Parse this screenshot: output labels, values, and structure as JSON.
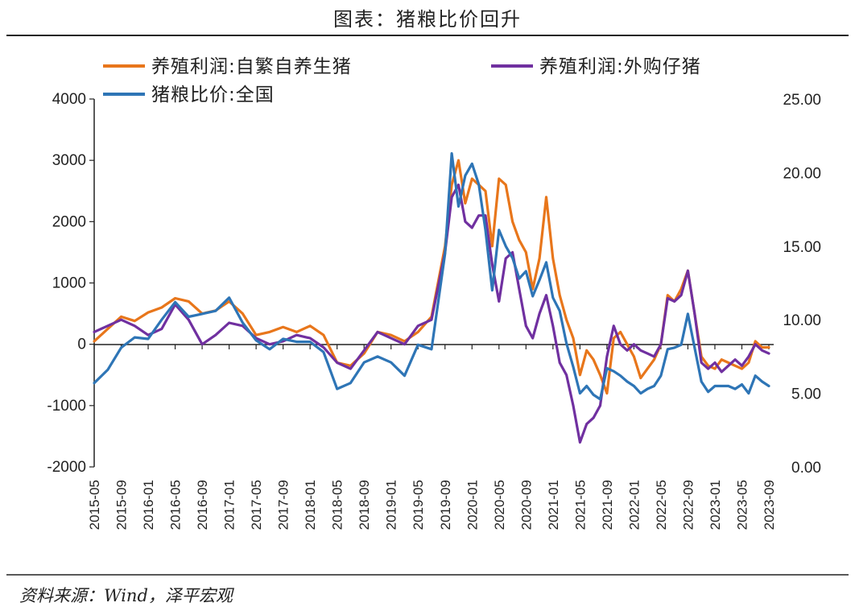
{
  "title": "图表：猪粮比价回升",
  "source": "资料来源：Wind，泽平宏观",
  "colors": {
    "orange": "#E8761B",
    "purple": "#7030A0",
    "blue": "#2E75B6",
    "rule": "#222222"
  },
  "chart_data": {
    "type": "line",
    "legend": [
      "养殖利润:自繁自养生猪",
      "养殖利润:外购仔猪",
      "猪粮比价:全国"
    ],
    "x_ticks": [
      "2015-05",
      "2015-09",
      "2016-01",
      "2016-05",
      "2016-09",
      "2017-01",
      "2017-05",
      "2017-09",
      "2018-01",
      "2018-05",
      "2018-09",
      "2019-01",
      "2019-05",
      "2019-09",
      "2020-01",
      "2020-05",
      "2020-09",
      "2021-01",
      "2021-05",
      "2021-09",
      "2022-01",
      "2022-05",
      "2022-09",
      "2023-01",
      "2023-05",
      "2023-09"
    ],
    "left_axis": {
      "ticks": [
        "4000",
        "3000",
        "2000",
        "1000",
        "0",
        "-1000",
        "-2000"
      ],
      "min": -2000,
      "max": 4000
    },
    "right_axis": {
      "ticks": [
        "25.00",
        "20.00",
        "15.00",
        "10.00",
        "5.00",
        "0.00"
      ],
      "min": 0,
      "max": 25
    },
    "series": [
      {
        "name": "养殖利润:自繁自养生猪",
        "axis": "left",
        "color": "#E8761B",
        "x": [
          "2015-05",
          "2015-07",
          "2015-09",
          "2015-11",
          "2016-01",
          "2016-03",
          "2016-05",
          "2016-07",
          "2016-09",
          "2016-11",
          "2017-01",
          "2017-03",
          "2017-05",
          "2017-07",
          "2017-09",
          "2017-11",
          "2018-01",
          "2018-03",
          "2018-05",
          "2018-07",
          "2018-09",
          "2018-11",
          "2019-01",
          "2019-03",
          "2019-05",
          "2019-07",
          "2019-09",
          "2019-10",
          "2019-11",
          "2019-12",
          "2020-01",
          "2020-02",
          "2020-03",
          "2020-04",
          "2020-05",
          "2020-06",
          "2020-07",
          "2020-08",
          "2020-09",
          "2020-10",
          "2020-11",
          "2020-12",
          "2021-01",
          "2021-02",
          "2021-03",
          "2021-04",
          "2021-05",
          "2021-06",
          "2021-07",
          "2021-08",
          "2021-09",
          "2021-10",
          "2021-11",
          "2021-12",
          "2022-01",
          "2022-02",
          "2022-03",
          "2022-04",
          "2022-05",
          "2022-06",
          "2022-07",
          "2022-08",
          "2022-09",
          "2022-10",
          "2022-11",
          "2022-12",
          "2023-01",
          "2023-02",
          "2023-03",
          "2023-04",
          "2023-05",
          "2023-06",
          "2023-07",
          "2023-08",
          "2023-09"
        ],
        "y": [
          50,
          250,
          450,
          380,
          520,
          600,
          750,
          700,
          500,
          550,
          700,
          500,
          150,
          200,
          280,
          200,
          300,
          150,
          -300,
          -350,
          -150,
          200,
          150,
          50,
          200,
          450,
          1600,
          2600,
          3000,
          2300,
          2700,
          2600,
          2500,
          1600,
          2700,
          2600,
          2000,
          1700,
          1500,
          900,
          1400,
          2400,
          1400,
          800,
          400,
          100,
          -500,
          -100,
          -250,
          -500,
          -800,
          100,
          200,
          0,
          -200,
          -550,
          -400,
          -250,
          0,
          800,
          700,
          900,
          1200,
          500,
          -200,
          -350,
          -400,
          -250,
          -300,
          -350,
          -400,
          -300,
          50,
          -50,
          -50
        ]
      },
      {
        "name": "养殖利润:外购仔猪",
        "axis": "left",
        "color": "#7030A0",
        "x": [
          "2015-05",
          "2015-07",
          "2015-09",
          "2015-11",
          "2016-01",
          "2016-03",
          "2016-05",
          "2016-07",
          "2016-09",
          "2016-11",
          "2017-01",
          "2017-03",
          "2017-05",
          "2017-07",
          "2017-09",
          "2017-11",
          "2018-01",
          "2018-03",
          "2018-05",
          "2018-07",
          "2018-09",
          "2018-11",
          "2019-01",
          "2019-03",
          "2019-05",
          "2019-07",
          "2019-09",
          "2019-10",
          "2019-11",
          "2019-12",
          "2020-01",
          "2020-02",
          "2020-03",
          "2020-04",
          "2020-05",
          "2020-06",
          "2020-07",
          "2020-08",
          "2020-09",
          "2020-10",
          "2020-11",
          "2020-12",
          "2021-01",
          "2021-02",
          "2021-03",
          "2021-04",
          "2021-05",
          "2021-06",
          "2021-07",
          "2021-08",
          "2021-09",
          "2021-10",
          "2021-11",
          "2021-12",
          "2022-01",
          "2022-02",
          "2022-03",
          "2022-04",
          "2022-05",
          "2022-06",
          "2022-07",
          "2022-08",
          "2022-09",
          "2022-10",
          "2022-11",
          "2022-12",
          "2023-01",
          "2023-02",
          "2023-03",
          "2023-04",
          "2023-05",
          "2023-06",
          "2023-07",
          "2023-08",
          "2023-09"
        ],
        "y": [
          200,
          300,
          400,
          300,
          150,
          250,
          650,
          400,
          0,
          150,
          350,
          300,
          100,
          0,
          50,
          150,
          100,
          -50,
          -300,
          -400,
          -100,
          200,
          100,
          0,
          300,
          400,
          1500,
          2400,
          2600,
          2000,
          1900,
          2100,
          2100,
          1300,
          700,
          1400,
          1500,
          900,
          300,
          100,
          500,
          800,
          300,
          -300,
          -500,
          -1000,
          -1600,
          -1300,
          -1200,
          -1000,
          -200,
          300,
          0,
          -100,
          0,
          -100,
          -150,
          -200,
          0,
          750,
          700,
          800,
          1200,
          500,
          -300,
          -400,
          -300,
          -450,
          -350,
          -250,
          -350,
          -200,
          0,
          -100,
          -150
        ]
      },
      {
        "name": "猪粮比价:全国",
        "axis": "right",
        "color": "#2E75B6",
        "x": [
          "2015-05",
          "2015-07",
          "2015-09",
          "2015-11",
          "2016-01",
          "2016-03",
          "2016-05",
          "2016-07",
          "2016-09",
          "2016-11",
          "2017-01",
          "2017-03",
          "2017-05",
          "2017-07",
          "2017-09",
          "2017-11",
          "2018-01",
          "2018-03",
          "2018-05",
          "2018-07",
          "2018-09",
          "2018-11",
          "2019-01",
          "2019-03",
          "2019-05",
          "2019-07",
          "2019-09",
          "2019-10",
          "2019-11",
          "2019-12",
          "2020-01",
          "2020-02",
          "2020-03",
          "2020-04",
          "2020-05",
          "2020-06",
          "2020-07",
          "2020-08",
          "2020-09",
          "2020-10",
          "2020-11",
          "2020-12",
          "2021-01",
          "2021-02",
          "2021-03",
          "2021-04",
          "2021-05",
          "2021-06",
          "2021-07",
          "2021-08",
          "2021-09",
          "2021-10",
          "2021-11",
          "2021-12",
          "2022-01",
          "2022-02",
          "2022-03",
          "2022-04",
          "2022-05",
          "2022-06",
          "2022-07",
          "2022-08",
          "2022-09",
          "2022-10",
          "2022-11",
          "2022-12",
          "2023-01",
          "2023-02",
          "2023-03",
          "2023-04",
          "2023-05",
          "2023-06",
          "2023-07",
          "2023-08",
          "2023-09"
        ],
        "y": [
          5.7,
          6.6,
          8.1,
          8.8,
          8.7,
          10.0,
          11.2,
          10.2,
          10.4,
          10.6,
          11.5,
          9.8,
          8.6,
          8.0,
          8.7,
          8.5,
          8.5,
          7.8,
          5.3,
          5.7,
          7.1,
          7.5,
          7.1,
          6.2,
          8.3,
          8.0,
          14.5,
          21.3,
          17.7,
          19.8,
          20.6,
          19.2,
          16.1,
          12.0,
          16.1,
          15.0,
          14.2,
          12.8,
          13.3,
          11.6,
          12.7,
          13.9,
          11.5,
          10.6,
          8.4,
          6.8,
          5.0,
          5.5,
          4.9,
          4.6,
          6.7,
          6.5,
          6.2,
          5.8,
          5.5,
          5.0,
          5.3,
          5.5,
          6.2,
          8.0,
          8.1,
          8.3,
          10.4,
          8.1,
          5.8,
          5.1,
          5.5,
          5.5,
          5.5,
          5.3,
          5.6,
          5.0,
          6.2,
          5.8,
          5.5
        ]
      }
    ]
  }
}
